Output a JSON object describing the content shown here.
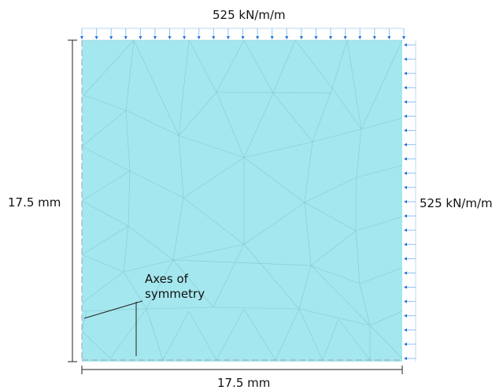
{
  "labels": {
    "top_load": "525 kN/m/m",
    "right_load": "525 kN/m/m",
    "height_dim": "17.5 mm",
    "width_dim": "17.5 mm",
    "axes_annotation": "Axes of\nsymmetry"
  },
  "colors": {
    "plate_fill": "#a5e7ee",
    "mesh_line": "#86c9d1",
    "load_arrow_dark": "#1b6fd6",
    "load_arrow_light": "#8fc2f2",
    "load_frame": "#b9d9f5",
    "dimension_line": "#222222",
    "symmetry_dash": "#99aab0"
  },
  "load_arrows": {
    "top_count": 23,
    "right_count": 23
  }
}
